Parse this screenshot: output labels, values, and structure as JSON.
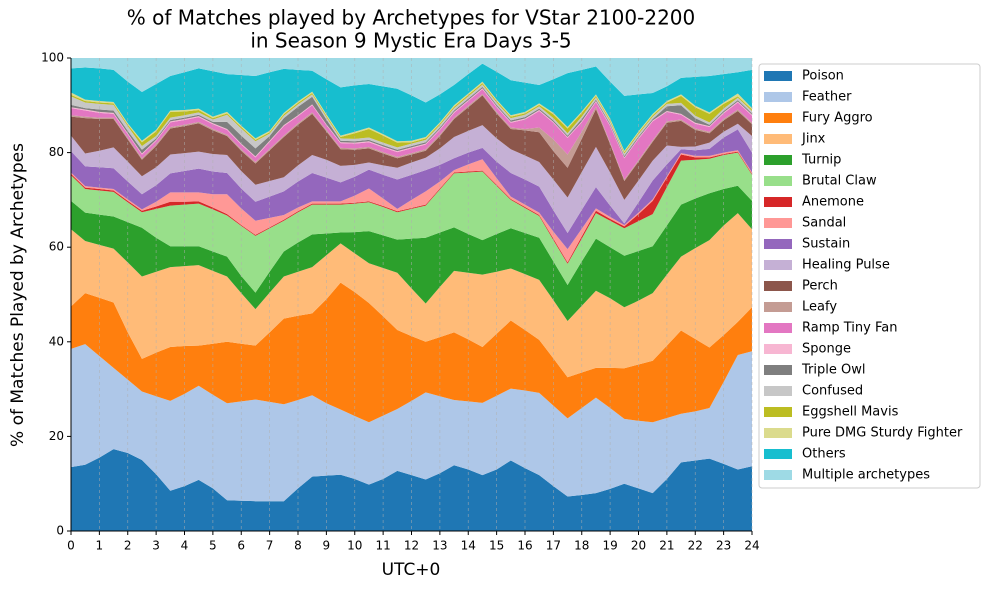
{
  "chart_data": {
    "type": "stacked_area",
    "title": [
      "% of Matches played by Archetypes for VStar 2100-2200",
      "in Season 9 Mystic Era Days 3-5"
    ],
    "xlabel": "UTC+0",
    "ylabel": "% of Matches Played by Archetypes",
    "x": [
      0,
      0.5,
      1,
      1.5,
      2,
      2.5,
      3,
      3.5,
      4,
      4.5,
      5,
      5.5,
      6,
      6.5,
      7,
      7.5,
      8,
      8.5,
      9,
      9.5,
      10,
      10.5,
      11,
      11.5,
      12,
      12.5,
      13,
      13.5,
      14,
      14.5,
      15,
      15.5,
      16,
      16.5,
      17,
      17.5,
      18,
      18.5,
      19,
      19.5,
      20,
      20.5,
      21,
      21.5,
      22,
      22.5,
      23,
      23.5,
      24
    ],
    "xlim": [
      0,
      24
    ],
    "xticks": [
      0,
      1,
      2,
      3,
      4,
      5,
      6,
      7,
      8,
      9,
      10,
      11,
      12,
      13,
      14,
      15,
      16,
      17,
      18,
      19,
      20,
      21,
      22,
      23,
      24
    ],
    "ylim": [
      0,
      100
    ],
    "yticks": [
      0,
      20,
      40,
      60,
      80,
      100
    ],
    "grid": "x",
    "legend": "outside right",
    "series": [
      {
        "name": "Poison",
        "color": "#1f77b4",
        "values": [
          13.5,
          14,
          15.5,
          17.3,
          16.5,
          15,
          12,
          8.5,
          9.5,
          10.8,
          9,
          6.5,
          6.4,
          6.3,
          6.3,
          6.3,
          9,
          11.5,
          11.7,
          11.9,
          11,
          9.8,
          11,
          12.7,
          11.8,
          10.9,
          12.2,
          13.9,
          13,
          11.8,
          13,
          14.9,
          13.3,
          11.8,
          9.5,
          7.3,
          7.6,
          8,
          8.9,
          10,
          9,
          8,
          11,
          14.5,
          14.9,
          15.3,
          14.2,
          13,
          13.7
        ]
      },
      {
        "name": "Feather",
        "color": "#aec7e8",
        "values": [
          25,
          25.5,
          21.5,
          17.2,
          15.5,
          14.5,
          16.5,
          19,
          19.5,
          19.9,
          19.8,
          20.5,
          21,
          21.5,
          21,
          20.5,
          18.7,
          17.2,
          15.3,
          13.8,
          13.3,
          13.2,
          13.4,
          13.1,
          15.7,
          18.4,
          16.3,
          13.8,
          14.4,
          15.3,
          15.6,
          15.2,
          16.4,
          17.4,
          17,
          16.5,
          18.4,
          20.2,
          17.1,
          13.7,
          14.3,
          15,
          12.9,
          10.3,
          10.4,
          10.7,
          17.3,
          24.2,
          24.3
        ]
      },
      {
        "name": "Fury Aggro",
        "color": "#ff7f0e",
        "values": [
          9,
          10.8,
          12.3,
          13.8,
          10,
          6.9,
          9.2,
          11.4,
          10.1,
          8.5,
          10.8,
          13,
          12.2,
          11.4,
          14.7,
          18.1,
          17.8,
          17.3,
          22,
          26.8,
          26.2,
          25.2,
          21,
          16.7,
          13.7,
          10.7,
          12.5,
          14.3,
          13.1,
          11.8,
          13.1,
          14.4,
          12.8,
          11.2,
          10,
          8.7,
          7.5,
          6.3,
          8.5,
          10.7,
          11.9,
          13,
          15.3,
          17.6,
          15.3,
          12.8,
          9.9,
          7,
          9.3
        ]
      },
      {
        "name": "Jinx",
        "color": "#ffbb78",
        "values": [
          16.3,
          11,
          11.2,
          11.4,
          14.8,
          17.4,
          17.1,
          16.9,
          16.9,
          17,
          15.4,
          13.8,
          10.7,
          7.7,
          8.4,
          8.9,
          9.3,
          9.8,
          9.3,
          8.3,
          8.2,
          8.4,
          10.2,
          12.1,
          10.1,
          8.1,
          10.6,
          13,
          14.1,
          15.3,
          13.1,
          11,
          11.8,
          12.7,
          12.3,
          11.9,
          14.1,
          16.3,
          14.7,
          12.9,
          13.5,
          14.3,
          15,
          15.6,
          19.2,
          22.7,
          23.2,
          23,
          16.5
        ]
      },
      {
        "name": "Turnip",
        "color": "#2ca02c",
        "values": [
          6,
          6,
          6.4,
          6.8,
          8.5,
          10.3,
          7.2,
          4.4,
          4.2,
          4,
          4.1,
          4.2,
          3.6,
          3.5,
          4.4,
          5.3,
          6.2,
          6.9,
          4.6,
          2.3,
          4.5,
          6.8,
          6.9,
          7,
          10.5,
          13.9,
          11.5,
          9.2,
          8.2,
          7.3,
          8,
          8.5,
          8.7,
          8.9,
          8.2,
          7.6,
          9.4,
          11,
          10.8,
          10.9,
          10.5,
          9.9,
          10.4,
          11,
          10.5,
          9.9,
          7.7,
          5.8,
          6
        ]
      },
      {
        "name": "Brutal Claw",
        "color": "#98df8a",
        "values": [
          5.4,
          5,
          5.1,
          5.2,
          4.2,
          3.3,
          6.1,
          8.6,
          8.8,
          9,
          8.9,
          8.7,
          10.6,
          12,
          9.2,
          6.5,
          6.4,
          6.3,
          6.1,
          5.9,
          6,
          6.1,
          6,
          5.8,
          6.3,
          6.8,
          9.1,
          11.4,
          13,
          14.5,
          10.2,
          6,
          5.3,
          4.6,
          4.5,
          4.5,
          4.8,
          5.4,
          5.6,
          5.8,
          6.3,
          6.8,
          8.1,
          9.3,
          8.2,
          7.3,
          7.2,
          7,
          5.5
        ]
      },
      {
        "name": "Anemone",
        "color": "#d62728",
        "values": [
          0.3,
          0.3,
          0.3,
          0.3,
          0.3,
          0.3,
          0.5,
          0.8,
          0.6,
          0.5,
          0.4,
          0.3,
          0.2,
          0.2,
          0.2,
          0.2,
          0.2,
          0.2,
          0.2,
          0.2,
          0.2,
          0.2,
          0.2,
          0.2,
          0.2,
          0.2,
          0.2,
          0.2,
          0.2,
          0.2,
          0.2,
          0.2,
          0.2,
          0.2,
          0.3,
          0.3,
          0.5,
          0.5,
          0.4,
          0.4,
          1.5,
          2.8,
          2,
          1.3,
          0.5,
          0.3,
          0.2,
          0.2,
          0.2
        ]
      },
      {
        "name": "Sandal",
        "color": "#ff9896",
        "values": [
          0.3,
          0.3,
          0.3,
          0.3,
          0.3,
          0.3,
          1,
          2,
          2,
          1.9,
          2.8,
          4.2,
          3.5,
          3,
          2,
          1,
          0.8,
          0.5,
          0.5,
          0.5,
          1.5,
          2.7,
          1.6,
          0.5,
          1.7,
          2.8,
          1.5,
          0.5,
          1.5,
          2.4,
          1.4,
          0.5,
          0.5,
          0.5,
          1.5,
          2.8,
          1.6,
          0.5,
          0.4,
          0.3,
          0.3,
          0.3,
          0.3,
          0.3,
          0.3,
          0.3,
          0.3,
          0.3,
          0.3
        ]
      },
      {
        "name": "Sustain",
        "color": "#9467bd",
        "values": [
          4.5,
          4.2,
          4.3,
          4.4,
          3.8,
          3.2,
          3.5,
          4,
          4.5,
          5,
          4.8,
          4.5,
          4.2,
          4,
          4.5,
          5,
          5.5,
          6,
          5,
          4,
          4,
          4,
          5,
          6.2,
          5.3,
          4.5,
          3.5,
          2.5,
          2.5,
          2.4,
          3.5,
          5,
          5.3,
          5.5,
          4.5,
          3.4,
          4,
          4.5,
          2.4,
          0.3,
          2.2,
          4,
          2.5,
          0.8,
          1.2,
          1.5,
          3.2,
          4.4,
          4.2
        ]
      },
      {
        "name": "Healing Pulse",
        "color": "#c5b0d5",
        "values": [
          3.3,
          2.7,
          3.5,
          4.4,
          4.2,
          3.8,
          3.8,
          4,
          3.8,
          3.6,
          3.7,
          3.8,
          3.7,
          3.6,
          3.3,
          3,
          3.4,
          3.8,
          3.8,
          3.5,
          2.5,
          1.5,
          2,
          2.5,
          2.6,
          2.6,
          3.5,
          4.5,
          4.6,
          4.8,
          4.9,
          5,
          5.1,
          5.2,
          6.5,
          7.5,
          8,
          8.5,
          7,
          5,
          4.6,
          4.2,
          4,
          0.5,
          0.8,
          1.3,
          1.2,
          1.2,
          3.5
        ]
      },
      {
        "name": "Perch",
        "color": "#8c564b",
        "values": [
          4,
          7.5,
          6.7,
          6,
          4.7,
          3.5,
          4.5,
          5.5,
          5.7,
          6,
          5,
          4,
          4.3,
          4.5,
          6.5,
          8.5,
          8.6,
          8.7,
          6,
          3.5,
          3.2,
          3,
          2.5,
          2,
          1.7,
          1.5,
          2.6,
          3.8,
          5,
          6.3,
          5.3,
          4.3,
          5.3,
          6.3,
          6,
          6.3,
          7,
          8,
          6,
          4,
          4,
          4,
          4.8,
          5.5,
          3.5,
          2,
          2.4,
          2.7,
          2.5
        ]
      },
      {
        "name": "Leafy",
        "color": "#c49c94",
        "values": [
          0.3,
          0.3,
          0.3,
          0.3,
          0.3,
          0.3,
          0.3,
          0.3,
          0.3,
          0.3,
          0.3,
          0.3,
          0.3,
          0.3,
          0.3,
          0.3,
          0.3,
          0.3,
          0.3,
          0.3,
          0.3,
          0.3,
          0.3,
          0.3,
          0.3,
          0.3,
          0.3,
          0.3,
          0.3,
          0.3,
          0.3,
          0.3,
          0.3,
          1,
          2.5,
          2.8,
          1.5,
          0.5,
          0.3,
          0.3,
          0.3,
          0.3,
          0.3,
          0.3,
          0.3,
          0.3,
          0.3,
          0.3,
          0.3
        ]
      },
      {
        "name": "Ramp Tiny Fan",
        "color": "#e377c2",
        "values": [
          1.5,
          1.3,
          1,
          0.8,
          0.8,
          0.8,
          0.8,
          1,
          1,
          1,
          1,
          1,
          1,
          1,
          1.5,
          2,
          1.5,
          1.5,
          1,
          1,
          1,
          1,
          1,
          1,
          1,
          1,
          1,
          1,
          1,
          1,
          1,
          1,
          2,
          3.5,
          3.5,
          3.5,
          2,
          1,
          3.5,
          4.5,
          4.5,
          4,
          2,
          1,
          1,
          1,
          1.2,
          1.5,
          1.5
        ]
      },
      {
        "name": "Sponge",
        "color": "#f7b6d2",
        "values": [
          0.2,
          0.2,
          0.2,
          0.2,
          0.2,
          0.2,
          0.2,
          0.2,
          0.2,
          0.2,
          0.2,
          0.2,
          0.2,
          0.2,
          0.2,
          0.2,
          0.2,
          0.2,
          0.2,
          0.2,
          0.2,
          0.2,
          0.2,
          0.2,
          0.2,
          0.2,
          0.2,
          0.2,
          0.2,
          0.2,
          0.2,
          0.2,
          0.2,
          0.2,
          0.2,
          0.2,
          0.2,
          0.2,
          0.2,
          0.2,
          0.2,
          0.2,
          0.2,
          0.2,
          0.2,
          0.2,
          0.2,
          0.2,
          0.2
        ]
      },
      {
        "name": "Triple Owl",
        "color": "#7f7f7f",
        "values": [
          0.5,
          0.3,
          0.5,
          0.5,
          0.5,
          0.8,
          0.3,
          0.3,
          0.3,
          0.3,
          0.3,
          1.5,
          1.7,
          1.7,
          1,
          1.5,
          1.8,
          1.6,
          1,
          0.3,
          0.3,
          0.3,
          0.3,
          0.3,
          0.3,
          0.3,
          0.3,
          0.3,
          0.3,
          0.3,
          0.3,
          0.3,
          0.3,
          0.3,
          0.3,
          0.3,
          0.5,
          0.3,
          0.3,
          0.3,
          0.3,
          0.3,
          1,
          1.8,
          1,
          0.3,
          0.3,
          0.3,
          0.3
        ]
      },
      {
        "name": "Confused",
        "color": "#c7c7c7",
        "values": [
          1.8,
          1.2,
          1.2,
          1.2,
          1,
          0.8,
          0.5,
          0.5,
          0.5,
          0.5,
          0.5,
          1.5,
          1.5,
          1.5,
          0.5,
          0.5,
          0.5,
          0.5,
          0.5,
          0.5,
          0.5,
          0.5,
          0.5,
          0.5,
          0.5,
          0.5,
          0.5,
          0.5,
          0.5,
          0.5,
          0.5,
          0.5,
          0.5,
          0.5,
          0.5,
          0.5,
          0.5,
          0.5,
          0.5,
          0.5,
          0.5,
          0.5,
          0.5,
          0.5,
          0.5,
          0.5,
          0.5,
          0.5,
          0.5
        ]
      },
      {
        "name": "Eggshell Mavis",
        "color": "#bcbd22",
        "values": [
          0.3,
          0.3,
          0.3,
          0.3,
          0.3,
          0.8,
          1,
          1.2,
          0.8,
          0.5,
          0.3,
          0.3,
          0.3,
          0.3,
          0.3,
          0.3,
          0.3,
          0.3,
          0.3,
          0.3,
          1.2,
          1.8,
          1.5,
          1,
          0.3,
          0.3,
          0.3,
          0.3,
          0.3,
          0.3,
          0.3,
          0.3,
          0.3,
          0.3,
          0.8,
          1,
          0.8,
          0.3,
          0.3,
          0.3,
          0.3,
          0.3,
          0.3,
          1.5,
          1.8,
          1.8,
          1,
          0.3,
          0.3
        ]
      },
      {
        "name": "Pure DMG Sturdy Fighter",
        "color": "#dbdb8d",
        "values": [
          0.5,
          0.3,
          0.3,
          0.3,
          0.3,
          0.3,
          0.3,
          0.3,
          0.3,
          0.3,
          0.3,
          0.3,
          0.3,
          0.3,
          0.3,
          0.3,
          0.3,
          0.3,
          0.3,
          0.3,
          0.3,
          0.3,
          0.3,
          0.3,
          0.3,
          0.3,
          0.3,
          0.3,
          0.3,
          0.3,
          0.3,
          0.3,
          0.3,
          0.3,
          0.3,
          0.3,
          0.3,
          0.3,
          0.3,
          0.3,
          0.3,
          0.3,
          0.3,
          0.3,
          0.3,
          0.3,
          0.3,
          0.6,
          0.3
        ]
      },
      {
        "name": "Others",
        "color": "#17becf",
        "values": [
          5.1,
          6.8,
          6.9,
          6.8,
          8.8,
          10.3,
          9.7,
          7.3,
          8,
          8.5,
          9.6,
          8,
          10.7,
          13.2,
          12.4,
          9.3,
          6.7,
          4.4,
          7.4,
          10.2,
          9.8,
          9.2,
          10.1,
          11.1,
          9.6,
          7.3,
          5.9,
          4.3,
          4.1,
          3.8,
          5.9,
          7.4,
          6.2,
          3.9,
          7.1,
          11.4,
          8.8,
          5.9,
          7.8,
          11.6,
          7.8,
          4.4,
          3.1,
          3.5,
          6.1,
          7.7,
          6,
          4.5,
          8.1
        ]
      },
      {
        "name": "Multiple archetypes",
        "color": "#9edae5",
        "values": [
          2.2,
          2,
          2.2,
          2.5,
          5,
          7.2,
          5.5,
          3.8,
          3,
          2.2,
          2.8,
          3.4,
          3.6,
          3.8,
          3,
          2.3,
          2.5,
          2.7,
          4.5,
          6.2,
          5.8,
          5.5,
          6,
          6.5,
          8,
          9.5,
          7.8,
          5.8,
          3.5,
          1.3,
          3,
          4.8,
          5.3,
          5.7,
          4.5,
          3.2,
          2.5,
          1.8,
          5,
          8,
          7.7,
          7.4,
          6,
          4.2,
          4,
          3.8,
          3.4,
          3,
          2.5
        ]
      }
    ]
  }
}
